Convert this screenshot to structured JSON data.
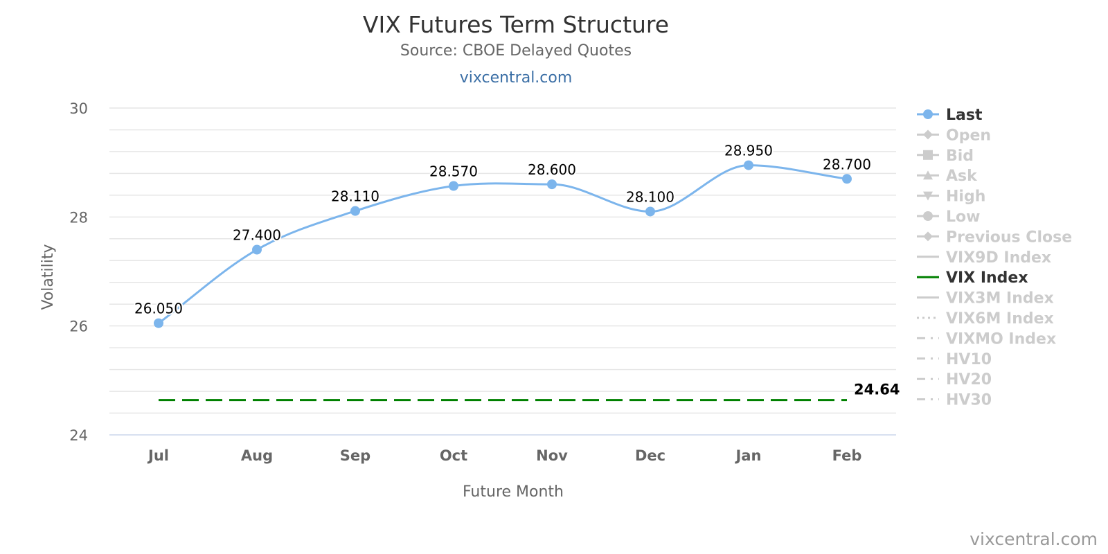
{
  "chart_data": {
    "type": "line",
    "title": "VIX Futures Term Structure",
    "subtitle": "Source: CBOE Delayed Quotes",
    "site_link": "vixcentral.com",
    "credits": "vixcentral.com",
    "xlabel": "Future Month",
    "ylabel": "Volatility",
    "categories": [
      "Jul",
      "Aug",
      "Sep",
      "Oct",
      "Nov",
      "Dec",
      "Jan",
      "Feb"
    ],
    "ylim": [
      24,
      30
    ],
    "yticks": [
      24,
      26,
      28,
      30
    ],
    "grid": true,
    "series": [
      {
        "name": "Last",
        "values": [
          26.05,
          27.4,
          28.11,
          28.57,
          28.6,
          28.1,
          28.95,
          28.7
        ],
        "data_labels": [
          "26.050",
          "27.400",
          "28.110",
          "28.570",
          "28.600",
          "28.100",
          "28.950",
          "28.700"
        ],
        "color": "#7cb5ec",
        "marker": "circle",
        "smooth": true
      },
      {
        "name": "VIX Index",
        "values": [
          24.64,
          24.64,
          24.64,
          24.64,
          24.64,
          24.64,
          24.64,
          24.64
        ],
        "end_label": "24.64",
        "color": "#008000",
        "dash": "dashed"
      }
    ],
    "legend_placement": "right",
    "legend": [
      {
        "name": "Last",
        "active": true,
        "symbol": "circle",
        "color": "#7cb5ec"
      },
      {
        "name": "Open",
        "active": false,
        "symbol": "diamond"
      },
      {
        "name": "Bid",
        "active": false,
        "symbol": "square"
      },
      {
        "name": "Ask",
        "active": false,
        "symbol": "triangle"
      },
      {
        "name": "High",
        "active": false,
        "symbol": "triangle-down"
      },
      {
        "name": "Low",
        "active": false,
        "symbol": "circle"
      },
      {
        "name": "Previous Close",
        "active": false,
        "symbol": "diamond"
      },
      {
        "name": "VIX9D Index",
        "active": false,
        "symbol": "line"
      },
      {
        "name": "VIX Index",
        "active": true,
        "symbol": "line",
        "color": "#008000"
      },
      {
        "name": "VIX3M Index",
        "active": false,
        "symbol": "line"
      },
      {
        "name": "VIX6M Index",
        "active": false,
        "symbol": "dotted"
      },
      {
        "name": "VIXMO Index",
        "active": false,
        "symbol": "dashdot"
      },
      {
        "name": "HV10",
        "active": false,
        "symbol": "dashdot"
      },
      {
        "name": "HV20",
        "active": false,
        "symbol": "dashdot"
      },
      {
        "name": "HV30",
        "active": false,
        "symbol": "dashdot"
      }
    ],
    "colors": {
      "title": "#333333",
      "subtitle": "#666666",
      "link": "#3a6ea5",
      "axis_text": "#666666",
      "grid": "#e6e6e6",
      "legend_active": "#333333",
      "legend_inactive": "#cccccc",
      "credits": "#999999"
    }
  }
}
